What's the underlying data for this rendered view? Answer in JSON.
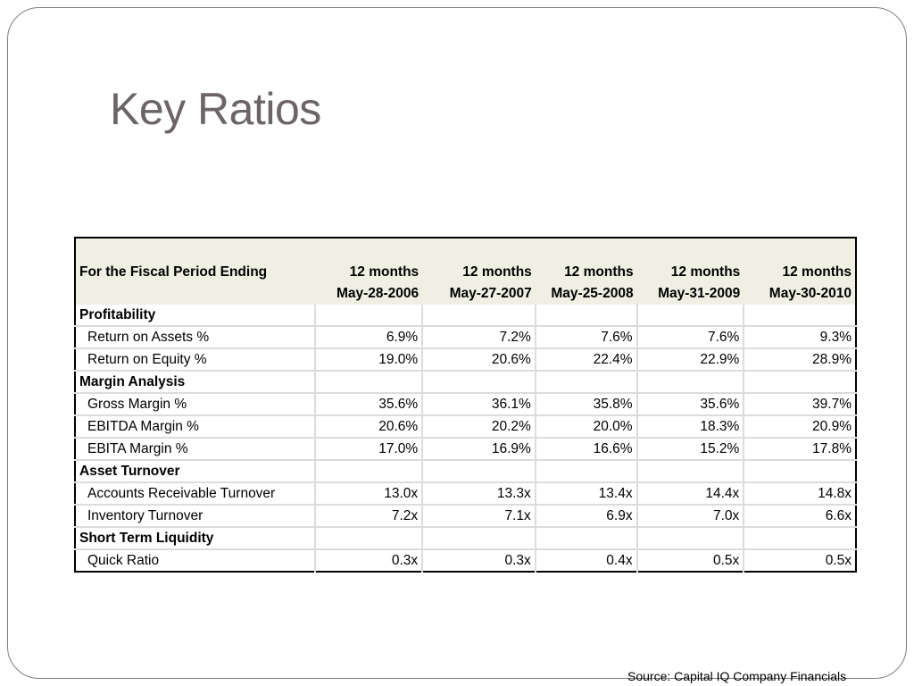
{
  "title": "Key Ratios",
  "table": {
    "header_label": "For the Fiscal Period Ending",
    "columns": [
      {
        "period": "12 months",
        "date": "May-28-2006"
      },
      {
        "period": "12 months",
        "date": "May-27-2007"
      },
      {
        "period": "12 months",
        "date": "May-25-2008"
      },
      {
        "period": "12 months",
        "date": "May-31-2009"
      },
      {
        "period": "12 months",
        "date": "May-30-2010"
      }
    ],
    "rows": [
      {
        "type": "section",
        "label": "Profitability",
        "values": [
          "",
          "",
          "",
          "",
          ""
        ]
      },
      {
        "type": "item",
        "label": "Return on Assets %",
        "values": [
          "6.9%",
          "7.2%",
          "7.6%",
          "7.6%",
          "9.3%"
        ]
      },
      {
        "type": "item",
        "label": "Return on Equity %",
        "values": [
          "19.0%",
          "20.6%",
          "22.4%",
          "22.9%",
          "28.9%"
        ]
      },
      {
        "type": "section",
        "label": "Margin Analysis",
        "values": [
          "",
          "",
          "",
          "",
          ""
        ]
      },
      {
        "type": "item",
        "label": "Gross Margin %",
        "values": [
          "35.6%",
          "36.1%",
          "35.8%",
          "35.6%",
          "39.7%"
        ]
      },
      {
        "type": "item",
        "label": "EBITDA Margin %",
        "values": [
          "20.6%",
          "20.2%",
          "20.0%",
          "18.3%",
          "20.9%"
        ]
      },
      {
        "type": "item",
        "label": "EBITA Margin %",
        "values": [
          "17.0%",
          "16.9%",
          "16.6%",
          "15.2%",
          "17.8%"
        ]
      },
      {
        "type": "section",
        "label": "Asset Turnover",
        "values": [
          "",
          "",
          "",
          "",
          ""
        ]
      },
      {
        "type": "item",
        "label": "Accounts Receivable Turnover",
        "values": [
          "13.0x",
          "13.3x",
          "13.4x",
          "14.4x",
          "14.8x"
        ]
      },
      {
        "type": "item",
        "label": "Inventory Turnover",
        "values": [
          "7.2x",
          "7.1x",
          "6.9x",
          "7.0x",
          "6.6x"
        ]
      },
      {
        "type": "section",
        "label": "Short Term Liquidity",
        "values": [
          "",
          "",
          "",
          "",
          ""
        ]
      },
      {
        "type": "item",
        "label": "Quick Ratio",
        "values": [
          "0.3x",
          "0.3x",
          "0.4x",
          "0.5x",
          "0.5x"
        ]
      }
    ]
  },
  "source": "Source: Capital IQ Company Financials"
}
